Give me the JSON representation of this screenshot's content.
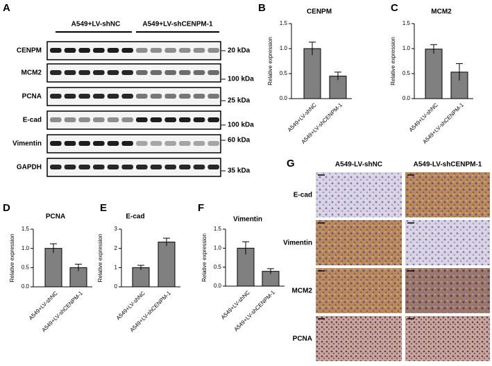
{
  "panel_labels": [
    "A",
    "B",
    "C",
    "D",
    "E",
    "F",
    "G"
  ],
  "blot": {
    "groups": [
      "A549+LV-shNC",
      "A549+LV-shCENPM-1"
    ],
    "rows": [
      {
        "label": "CENPM",
        "marker": "20 kDa"
      },
      {
        "label": "MCM2",
        "marker": "100 kDa"
      },
      {
        "label": "PCNA",
        "marker": "25 kDa"
      },
      {
        "label": "E-cad",
        "marker": "100 kDa"
      },
      {
        "label": "Vimentin",
        "marker": "60 kDa"
      },
      {
        "label": "GAPDH",
        "marker": "35 kDa"
      }
    ]
  },
  "ihc": {
    "columns": [
      "A549-LV-shNC",
      "A549-LV-shCENPM-1"
    ],
    "rows": [
      "E-cad",
      "Vimentin",
      "MCM2",
      "PCNA"
    ]
  },
  "chart_data": [
    {
      "type": "bar",
      "title": "CENPM",
      "ylabel": "Relative expression",
      "categories": [
        "A549+LV-shNC",
        "A549+LV-shCENPM-1"
      ],
      "values": [
        1.0,
        0.45
      ],
      "errors": [
        0.13,
        0.08
      ],
      "color": "#808080",
      "ylim": [
        0,
        1.5
      ],
      "yticks": [
        {
          "value": 0,
          "label": "0.0"
        },
        {
          "value": 0.5,
          "label": "0.5"
        },
        {
          "value": 1,
          "label": "1.0"
        },
        {
          "value": 1.5,
          "label": "1.5"
        }
      ]
    },
    {
      "type": "bar",
      "title": "MCM2",
      "ylabel": "Relative expression",
      "categories": [
        "A549+LV-shNC",
        "A549+LV-shCENPM-1"
      ],
      "values": [
        0.99,
        0.53
      ],
      "errors": [
        0.09,
        0.17
      ],
      "color": "#808080",
      "ylim": [
        0,
        1.5
      ],
      "yticks": [
        {
          "value": 0,
          "label": "0.0"
        },
        {
          "value": 0.5,
          "label": "0.5"
        },
        {
          "value": 1,
          "label": "1.0"
        },
        {
          "value": 1.5,
          "label": "1.5"
        }
      ]
    },
    {
      "type": "bar",
      "title": "PCNA",
      "ylabel": "Relative expression",
      "categories": [
        "A549+LV-shNC",
        "A549+LV-shCENPM-1"
      ],
      "values": [
        1.0,
        0.5
      ],
      "errors": [
        0.12,
        0.09
      ],
      "color": "#808080",
      "ylim": [
        0,
        1.5
      ],
      "yticks": [
        {
          "value": 0,
          "label": "0.0"
        },
        {
          "value": 0.5,
          "label": "0.5"
        },
        {
          "value": 1,
          "label": "1.0"
        },
        {
          "value": 1.5,
          "label": "1.5"
        }
      ]
    },
    {
      "type": "bar",
      "title": "E-cad",
      "ylabel": "Relative expression",
      "categories": [
        "A549+LV-shNC",
        "A549+LV-shCENPM-1"
      ],
      "values": [
        1.0,
        2.33
      ],
      "errors": [
        0.12,
        0.2
      ],
      "color": "#808080",
      "ylim": [
        0,
        3
      ],
      "yticks": [
        0,
        1,
        2,
        3
      ]
    },
    {
      "type": "bar",
      "title": "Vimentin",
      "ylabel": "Relative expression",
      "categories": [
        "A549+LV-shNC",
        "A549+LV-shCENPM-1"
      ],
      "values": [
        1.0,
        0.39
      ],
      "errors": [
        0.17,
        0.07
      ],
      "color": "#808080",
      "ylim": [
        0,
        1.5
      ],
      "yticks": [
        {
          "value": 0,
          "label": "0.0"
        },
        {
          "value": 0.5,
          "label": "0.5"
        },
        {
          "value": 1,
          "label": "1.0"
        },
        {
          "value": 1.5,
          "label": "1.5"
        }
      ]
    }
  ]
}
